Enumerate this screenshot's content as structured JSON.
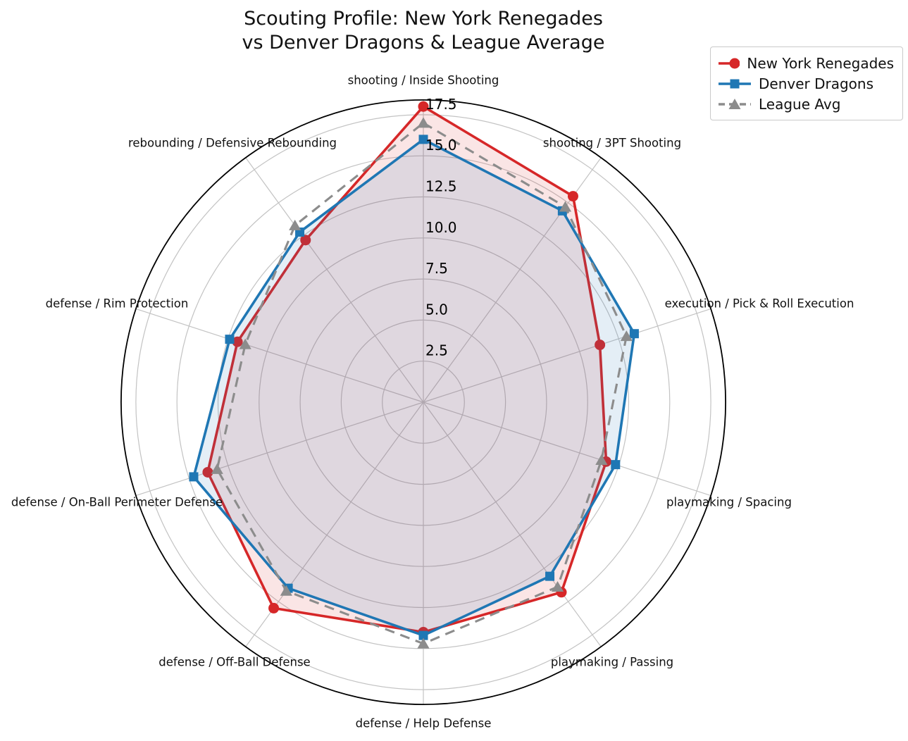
{
  "title": {
    "line1": "Scouting Profile: New York Renegades",
    "line2": "vs Denver Dragons & League Average"
  },
  "legend": {
    "position": "top-right",
    "entries": [
      {
        "label": "New York Renegades",
        "color": "#d62728",
        "marker": "circle",
        "line": "solid"
      },
      {
        "label": "Denver Dragons",
        "color": "#1f77b4",
        "marker": "square",
        "line": "solid"
      },
      {
        "label": "League Avg",
        "color": "#8c8c8c",
        "marker": "triangle",
        "line": "dashed"
      }
    ]
  },
  "chart_data": {
    "type": "radar",
    "title": "Scouting Profile: New York Renegades vs Denver Dragons & League Average",
    "categories": [
      "shooting / Inside Shooting",
      "shooting / 3PT Shooting",
      "execution / Pick & Roll Execution",
      "playmaking / Spacing",
      "playmaking / Passing",
      "defense / Help Defense",
      "defense / Off-Ball Defense",
      "defense / On-Ball Perimeter Defense",
      "defense / Rim Protection",
      "rebounding / Defensive Rebounding"
    ],
    "series": [
      {
        "name": "New York Renegades",
        "color": "#d62728",
        "marker": "circle",
        "line": "solid",
        "fill": true,
        "values": [
          18.0,
          15.5,
          11.3,
          11.7,
          14.3,
          14.0,
          15.5,
          13.8,
          11.9,
          12.2
        ]
      },
      {
        "name": "Denver Dragons",
        "color": "#1f77b4",
        "marker": "square",
        "line": "solid",
        "fill": true,
        "values": [
          16.0,
          14.4,
          13.5,
          12.3,
          13.1,
          14.2,
          14.0,
          14.7,
          12.4,
          12.8
        ]
      },
      {
        "name": "League Avg",
        "color": "#8c8c8c",
        "marker": "triangle",
        "line": "dashed",
        "fill": false,
        "values": [
          17.0,
          14.7,
          13.0,
          11.4,
          13.9,
          14.7,
          14.2,
          13.2,
          11.4,
          13.3
        ]
      }
    ],
    "radial_ticks": [
      2.5,
      5.0,
      7.5,
      10.0,
      12.5,
      15.0,
      17.5
    ],
    "r_max": 18.4,
    "start_angle_deg": 90,
    "direction": "clockwise",
    "grid": true,
    "fill_alpha": 0.12,
    "grid_color": "#c3c3c3",
    "outline_color": "#000000",
    "legend_position": "upper right"
  }
}
